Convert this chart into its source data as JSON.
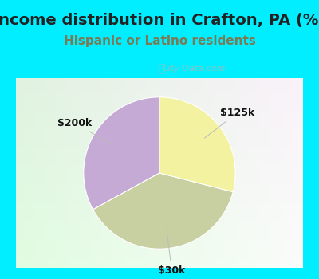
{
  "title": "Income distribution in Crafton, PA (%)",
  "subtitle": "Hispanic or Latino residents",
  "slices": [
    {
      "label": "$200k",
      "value": 33,
      "color": "#c4aad4"
    },
    {
      "label": "$30k",
      "value": 38,
      "color": "#c8cfa0"
    },
    {
      "label": "$125k",
      "value": 29,
      "color": "#f2f2a0"
    }
  ],
  "bg_top_color": "#00eeff",
  "title_color": "#222222",
  "subtitle_color": "#7a7a55",
  "watermark_text": "City-Data.com",
  "watermark_color": "#aaaaaa",
  "label_color": "#111111",
  "label_fontsize": 9,
  "title_fontsize": 14,
  "subtitle_fontsize": 11,
  "startangle": 90
}
